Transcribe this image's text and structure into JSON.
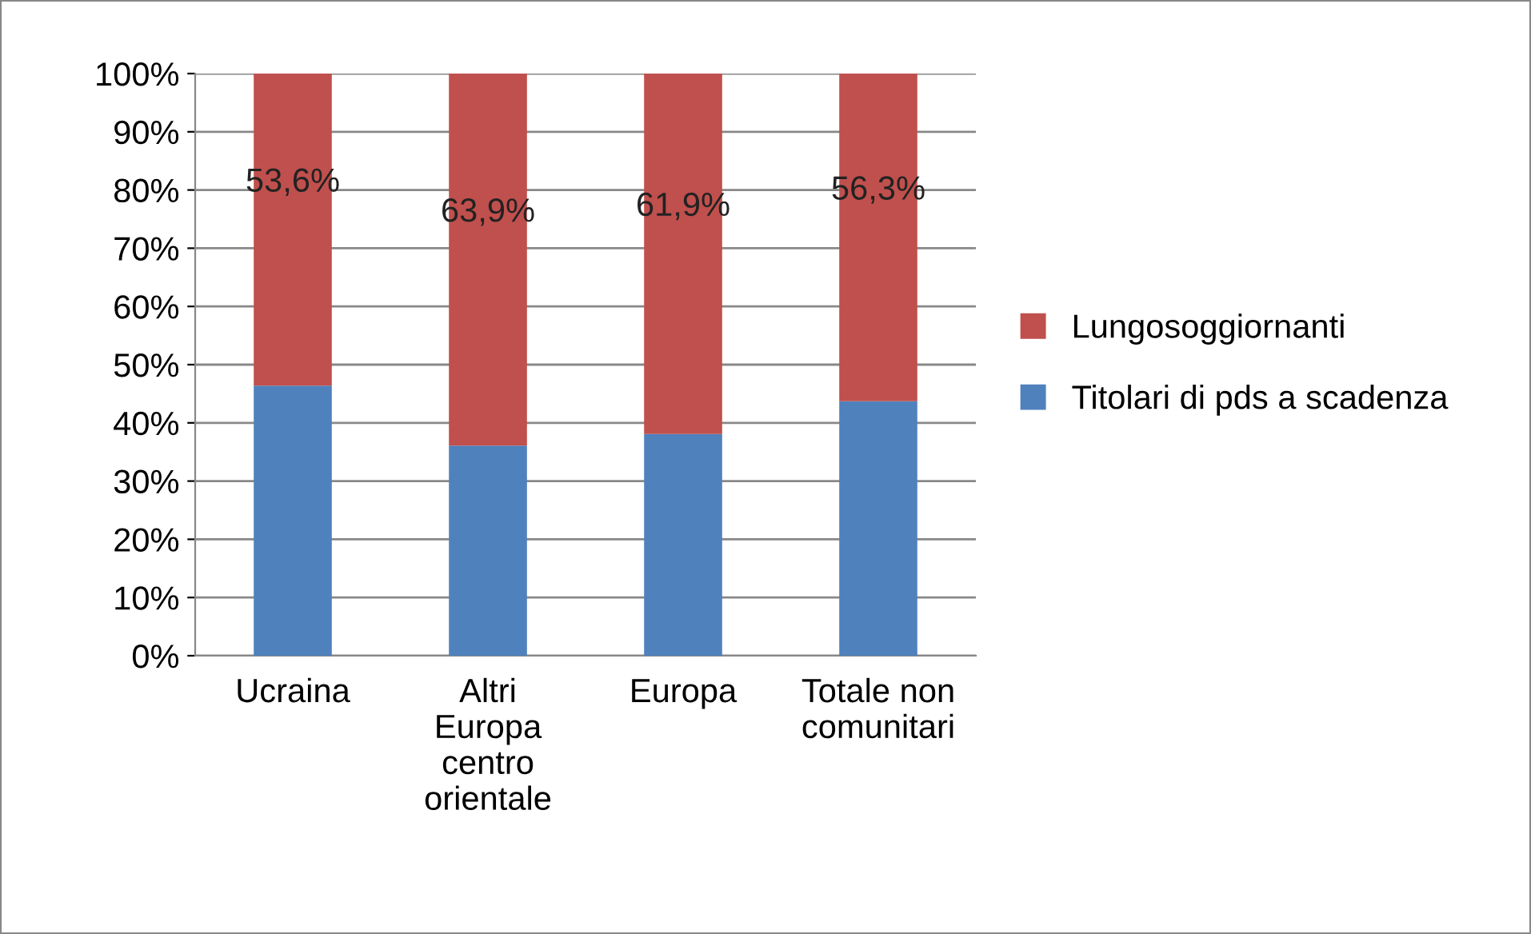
{
  "chart_data": {
    "type": "bar",
    "stacked": true,
    "categories": [
      "Ucraina",
      "Altri\nEuropa\ncentro\norientale",
      "Europa",
      "Totale non\ncomunitari"
    ],
    "series": [
      {
        "name": "Titolari di pds a scadenza",
        "color": "#4f81bd",
        "values": [
          46.4,
          36.1,
          38.1,
          43.7
        ]
      },
      {
        "name": "Lungosoggiornanti",
        "color": "#c0504d",
        "values": [
          53.6,
          63.9,
          61.9,
          56.3
        ],
        "value_labels": [
          "53,6%",
          "63,9%",
          "61,9%",
          "56,3%"
        ]
      }
    ],
    "ylim": [
      0,
      100
    ],
    "yticks": [
      {
        "value": 0,
        "label": "0%"
      },
      {
        "value": 10,
        "label": "10%"
      },
      {
        "value": 20,
        "label": "20%"
      },
      {
        "value": 30,
        "label": "30%"
      },
      {
        "value": 40,
        "label": "40%"
      },
      {
        "value": 50,
        "label": "50%"
      },
      {
        "value": 60,
        "label": "60%"
      },
      {
        "value": 70,
        "label": "70%"
      },
      {
        "value": 80,
        "label": "80%"
      },
      {
        "value": 90,
        "label": "90%"
      },
      {
        "value": 100,
        "label": "100%"
      }
    ],
    "grid": "y",
    "legend": "right"
  }
}
